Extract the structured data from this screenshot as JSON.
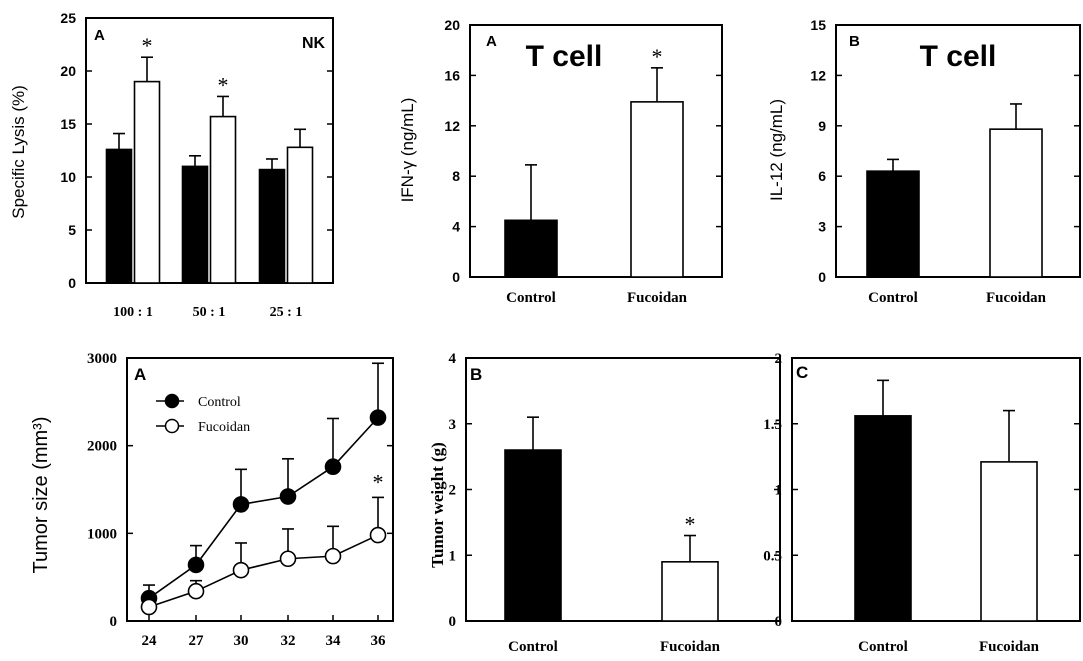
{
  "chart_data": [
    {
      "type": "bar",
      "panel_label": "A",
      "title": "NK",
      "ylabel": "Specific Lysis (%)",
      "ylim": [
        0,
        25
      ],
      "yticks": [
        0,
        5,
        10,
        15,
        20,
        25
      ],
      "categories": [
        "100 : 1",
        "50 : 1",
        "25 : 1"
      ],
      "series": [
        {
          "color": "#000000",
          "values": [
            12.6,
            11.0,
            10.7
          ],
          "errors": [
            1.5,
            1.0,
            1.0
          ]
        },
        {
          "color": "#ffffff",
          "values": [
            19.0,
            15.7,
            12.8
          ],
          "errors": [
            2.3,
            1.9,
            1.7
          ]
        }
      ],
      "significance": [
        "*",
        "*",
        ""
      ]
    },
    {
      "type": "bar",
      "panel_label": "A",
      "title": "T cell",
      "ylabel": "IFN-γ (ng/mL)",
      "ylim": [
        0,
        20
      ],
      "yticks": [
        0,
        4,
        8,
        12,
        16,
        20
      ],
      "categories": [
        "Control",
        "Fucoidan"
      ],
      "values": [
        4.5,
        13.9
      ],
      "errors": [
        4.4,
        2.7
      ],
      "colors": [
        "#000000",
        "#ffffff"
      ],
      "significance": [
        "",
        "*"
      ]
    },
    {
      "type": "bar",
      "panel_label": "B",
      "title": "T cell",
      "ylabel": "IL-12 (ng/mL)",
      "ylim": [
        0,
        15
      ],
      "yticks": [
        0,
        3,
        6,
        9,
        12,
        15
      ],
      "categories": [
        "Control",
        "Fucoidan"
      ],
      "values": [
        6.3,
        8.8
      ],
      "errors": [
        0.7,
        1.5
      ],
      "colors": [
        "#000000",
        "#ffffff"
      ],
      "significance": [
        "",
        ""
      ]
    },
    {
      "type": "line",
      "panel_label": "A",
      "ylabel": "Tumor size (mm³)",
      "ylim": [
        0,
        3000
      ],
      "yticks": [
        0,
        1000,
        2000,
        3000
      ],
      "x": [
        "24",
        "27",
        "30",
        "32",
        "34",
        "36"
      ],
      "series": [
        {
          "name": "Control",
          "marker": "filled",
          "values": [
            260,
            640,
            1330,
            1420,
            1760,
            2320
          ],
          "errors": [
            150,
            220,
            400,
            430,
            550,
            620
          ]
        },
        {
          "name": "Fucoidan",
          "marker": "open",
          "values": [
            160,
            340,
            580,
            710,
            740,
            980
          ],
          "errors": [
            80,
            120,
            310,
            340,
            340,
            430
          ]
        }
      ],
      "legend": "top-left",
      "significance": [
        "",
        "",
        "",
        "",
        "",
        "*"
      ]
    },
    {
      "type": "bar",
      "panel_label": "B",
      "ylabel": "Tumor weight (g)",
      "ylim": [
        0,
        4
      ],
      "yticks": [
        0,
        1,
        2,
        3,
        4
      ],
      "categories": [
        "Control",
        "Fucoidan"
      ],
      "values": [
        2.6,
        0.9
      ],
      "errors": [
        0.5,
        0.4
      ],
      "colors": [
        "#000000",
        "#ffffff"
      ],
      "significance": [
        "",
        "*"
      ]
    },
    {
      "type": "bar",
      "panel_label": "C",
      "ylabel": "",
      "ylim": [
        0,
        2
      ],
      "yticks": [
        "0",
        "0.5",
        "1",
        "1.5",
        "2"
      ],
      "categories": [
        "Control",
        "Fucoidan"
      ],
      "values": [
        1.56,
        1.21
      ],
      "errors": [
        0.27,
        0.39
      ],
      "colors": [
        "#000000",
        "#ffffff"
      ],
      "significance": [
        "",
        ""
      ]
    }
  ]
}
